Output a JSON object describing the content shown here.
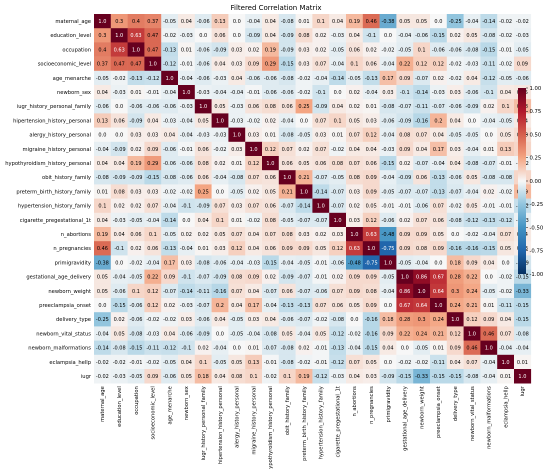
{
  "chart_data": {
    "type": "heatmap",
    "title": "Filtered Correlation Matrix",
    "xlabel": "",
    "ylabel": "",
    "labels": [
      "maternal_age",
      "education_level",
      "occupation",
      "socioeconomic_level",
      "age_menarche",
      "newborn_sex",
      "iugr_history_personal_family",
      "hipertension_history_personal",
      "alergy_history_personal",
      "migraine_history_personal",
      "hypothyroidism_history_personal",
      "obit_history_family",
      "preterm_birth_history_family",
      "hypertension_history_family",
      "cigarette_pregestational_1t",
      "n_abortions",
      "n_pregnancies",
      "primigravidity",
      "gestational_age_delivery",
      "newborn_weight",
      "preeclampsia_onset",
      "delivery_type",
      "newborn_vital_status",
      "newborn_malformations",
      "eclampsia_hellp",
      "iugr"
    ],
    "matrix": [
      [
        1.0,
        0.3,
        0.4,
        0.37,
        -0.05,
        0.04,
        -0.06,
        0.13,
        0.0,
        -0.04,
        0.04,
        -0.08,
        0.01,
        0.1,
        0.04,
        0.19,
        0.46,
        -0.38,
        0.05,
        0.05,
        0.0,
        -0.25,
        -0.04,
        -0.14,
        -0.02,
        -0.02
      ],
      [
        0.3,
        1.0,
        0.63,
        0.47,
        -0.02,
        -0.03,
        0.0,
        0.06,
        0.0,
        -0.09,
        0.04,
        -0.09,
        0.08,
        0.02,
        -0.03,
        0.04,
        -0.1,
        0.0,
        -0.04,
        -0.06,
        -0.15,
        0.02,
        0.05,
        -0.08,
        -0.02,
        -0.03
      ],
      [
        0.4,
        0.63,
        1.0,
        0.47,
        -0.13,
        0.01,
        -0.06,
        -0.09,
        0.03,
        0.02,
        0.19,
        -0.09,
        0.03,
        0.02,
        -0.05,
        0.06,
        0.02,
        -0.02,
        -0.05,
        0.1,
        -0.06,
        -0.06,
        -0.08,
        -0.15,
        -0.01,
        -0.05
      ],
      [
        0.37,
        0.47,
        0.47,
        1.0,
        -0.12,
        -0.01,
        -0.06,
        0.04,
        0.03,
        0.09,
        0.29,
        -0.15,
        0.03,
        0.07,
        -0.04,
        0.1,
        0.06,
        -0.04,
        0.22,
        0.12,
        0.12,
        -0.02,
        -0.03,
        -0.11,
        -0.02,
        0.09
      ],
      [
        -0.05,
        -0.02,
        -0.13,
        -0.12,
        1.0,
        -0.04,
        -0.06,
        -0.03,
        0.04,
        -0.06,
        -0.06,
        -0.08,
        -0.02,
        -0.04,
        -0.14,
        -0.05,
        -0.13,
        0.17,
        0.09,
        -0.07,
        0.02,
        -0.02,
        0.04,
        -0.12,
        -0.05,
        -0.06
      ],
      [
        0.04,
        -0.03,
        0.01,
        -0.01,
        -0.04,
        1.0,
        -0.03,
        -0.04,
        -0.04,
        -0.01,
        -0.06,
        -0.06,
        -0.02,
        -0.1,
        0.0,
        0.02,
        -0.04,
        0.03,
        -0.1,
        -0.14,
        -0.03,
        0.03,
        -0.06,
        -0.1,
        0.04,
        0.05
      ],
      [
        -0.06,
        0.0,
        -0.06,
        -0.06,
        -0.06,
        -0.03,
        1.0,
        0.05,
        -0.03,
        0.06,
        0.08,
        0.06,
        0.25,
        -0.09,
        0.04,
        0.02,
        0.01,
        -0.08,
        -0.07,
        -0.11,
        -0.07,
        -0.06,
        -0.09,
        0.02,
        0.1,
        0.18
      ],
      [
        0.13,
        0.06,
        -0.09,
        0.04,
        -0.03,
        -0.04,
        0.05,
        1.0,
        -0.03,
        -0.02,
        0.02,
        -0.04,
        0.0,
        0.07,
        0.1,
        0.05,
        0.03,
        -0.06,
        -0.09,
        -0.16,
        0.2,
        0.04,
        0.0,
        -0.04,
        -0.05,
        0.04
      ],
      [
        0.0,
        0.0,
        0.03,
        0.03,
        0.04,
        -0.04,
        -0.03,
        -0.03,
        1.0,
        0.03,
        0.01,
        -0.08,
        -0.05,
        0.03,
        0.01,
        0.07,
        0.12,
        -0.04,
        0.08,
        0.07,
        0.04,
        -0.05,
        -0.05,
        0.0,
        0.05,
        0.08
      ],
      [
        -0.04,
        -0.09,
        0.02,
        0.09,
        -0.06,
        -0.01,
        0.06,
        -0.02,
        0.03,
        1.0,
        0.12,
        0.07,
        0.02,
        0.07,
        -0.02,
        0.04,
        0.04,
        -0.03,
        0.09,
        0.04,
        0.17,
        0.03,
        -0.04,
        0.01,
        0.13,
        0.1
      ],
      [
        0.04,
        0.04,
        0.19,
        0.29,
        -0.06,
        -0.06,
        0.08,
        0.02,
        0.01,
        0.12,
        1.0,
        0.06,
        0.05,
        0.06,
        0.08,
        0.07,
        0.06,
        -0.15,
        0.02,
        -0.07,
        -0.04,
        0.04,
        -0.08,
        -0.07,
        -0.01,
        -0.02
      ],
      [
        -0.08,
        -0.09,
        -0.09,
        -0.15,
        -0.08,
        -0.06,
        0.06,
        -0.04,
        -0.08,
        0.07,
        0.06,
        1.0,
        0.21,
        -0.07,
        -0.05,
        0.08,
        0.09,
        -0.04,
        -0.09,
        0.06,
        -0.13,
        -0.06,
        0.05,
        -0.08,
        -0.08,
        0.1
      ],
      [
        0.01,
        0.08,
        0.03,
        0.03,
        -0.02,
        -0.02,
        0.25,
        0.0,
        -0.05,
        0.02,
        0.05,
        0.21,
        1.0,
        -0.14,
        -0.07,
        0.03,
        0.09,
        -0.05,
        -0.07,
        -0.07,
        -0.13,
        -0.07,
        -0.04,
        0.02,
        -0.02,
        0.19
      ],
      [
        0.1,
        0.02,
        0.02,
        0.07,
        -0.04,
        -0.1,
        -0.09,
        0.07,
        0.03,
        0.07,
        0.06,
        -0.07,
        -0.14,
        1.0,
        -0.07,
        0.02,
        0.05,
        -0.01,
        -0.01,
        -0.06,
        0.07,
        -0.02,
        0.05,
        -0.01,
        -0.01,
        -0.12
      ],
      [
        0.04,
        -0.03,
        -0.05,
        -0.04,
        -0.14,
        0.0,
        0.04,
        0.1,
        0.01,
        -0.02,
        0.08,
        -0.05,
        -0.07,
        -0.07,
        1.0,
        0.03,
        0.12,
        -0.06,
        0.02,
        0.07,
        0.06,
        -0.08,
        -0.12,
        -0.13,
        -0.12,
        -0.03
      ],
      [
        0.19,
        0.04,
        0.06,
        0.1,
        -0.05,
        0.02,
        0.02,
        0.05,
        0.07,
        0.04,
        0.07,
        0.08,
        0.03,
        0.02,
        0.03,
        1.0,
        0.63,
        -0.48,
        0.09,
        0.09,
        0.05,
        0.0,
        -0.02,
        -0.04,
        0.07,
        0.04
      ],
      [
        0.46,
        -0.1,
        0.02,
        0.06,
        -0.13,
        -0.04,
        0.01,
        0.03,
        0.12,
        0.04,
        0.06,
        0.09,
        0.09,
        0.05,
        0.12,
        0.63,
        1.0,
        -0.75,
        0.09,
        0.08,
        0.09,
        -0.16,
        -0.16,
        -0.15,
        0.05,
        0.03
      ],
      [
        -0.38,
        0.0,
        -0.02,
        -0.04,
        0.17,
        0.03,
        -0.08,
        -0.06,
        -0.04,
        -0.03,
        -0.15,
        -0.04,
        -0.05,
        -0.01,
        -0.06,
        -0.48,
        -0.75,
        1.0,
        -0.05,
        -0.04,
        0.0,
        0.18,
        0.09,
        0.04,
        0.0,
        -0.09
      ],
      [
        0.05,
        -0.04,
        -0.05,
        0.22,
        0.09,
        -0.1,
        -0.07,
        -0.09,
        0.08,
        0.09,
        0.02,
        -0.09,
        -0.07,
        -0.01,
        0.02,
        0.09,
        0.09,
        -0.05,
        1.0,
        0.86,
        0.67,
        0.28,
        0.22,
        0.0,
        -0.02,
        -0.15
      ],
      [
        0.05,
        -0.06,
        0.1,
        0.12,
        -0.07,
        -0.14,
        -0.11,
        -0.16,
        0.07,
        0.04,
        -0.07,
        0.06,
        -0.07,
        -0.06,
        0.07,
        0.09,
        0.08,
        -0.04,
        0.86,
        1.0,
        0.64,
        0.3,
        0.24,
        -0.05,
        -0.02,
        -0.33
      ],
      [
        0.0,
        -0.15,
        -0.06,
        0.12,
        0.02,
        -0.03,
        -0.07,
        0.2,
        0.04,
        0.17,
        -0.04,
        -0.13,
        -0.13,
        0.07,
        0.06,
        0.05,
        0.09,
        0.0,
        0.67,
        0.64,
        1.0,
        0.24,
        0.21,
        0.01,
        -0.11,
        -0.15
      ],
      [
        -0.25,
        0.02,
        -0.06,
        -0.02,
        -0.02,
        0.03,
        -0.06,
        0.04,
        -0.05,
        0.03,
        0.04,
        -0.06,
        -0.07,
        -0.02,
        -0.08,
        0.0,
        -0.16,
        0.18,
        0.28,
        0.3,
        0.24,
        1.0,
        0.12,
        0.09,
        0.04,
        -0.15
      ],
      [
        -0.04,
        0.05,
        -0.08,
        -0.03,
        0.04,
        -0.06,
        -0.09,
        0.0,
        -0.05,
        -0.04,
        -0.08,
        0.05,
        -0.04,
        0.05,
        -0.12,
        -0.02,
        -0.16,
        0.09,
        0.22,
        0.24,
        0.21,
        0.12,
        1.0,
        0.46,
        0.07,
        -0.08
      ],
      [
        -0.14,
        -0.08,
        -0.15,
        -0.11,
        -0.12,
        -0.1,
        0.02,
        -0.04,
        0.0,
        0.01,
        -0.07,
        -0.08,
        0.02,
        -0.01,
        -0.13,
        -0.04,
        -0.15,
        0.04,
        0.0,
        -0.05,
        0.01,
        0.09,
        0.46,
        1.0,
        -0.04,
        -0.04
      ],
      [
        -0.02,
        -0.02,
        -0.01,
        -0.02,
        -0.05,
        0.04,
        0.1,
        -0.05,
        0.05,
        0.13,
        -0.01,
        -0.08,
        -0.02,
        -0.01,
        -0.12,
        0.07,
        0.05,
        0.0,
        -0.02,
        -0.02,
        -0.11,
        0.04,
        0.07,
        -0.04,
        1.0,
        0.01
      ],
      [
        -0.02,
        -0.03,
        -0.05,
        0.09,
        -0.06,
        0.05,
        0.18,
        0.04,
        0.08,
        0.1,
        -0.02,
        0.1,
        0.19,
        -0.12,
        -0.03,
        0.04,
        0.03,
        -0.09,
        -0.15,
        -0.33,
        -0.15,
        -0.15,
        -0.08,
        -0.04,
        0.01,
        1.0
      ]
    ],
    "colorbar": {
      "min": -1.0,
      "max": 1.0,
      "ticks": [
        "1.00",
        "0.75",
        "0.50",
        "0.25",
        "0.00",
        "-0.25",
        "-0.50",
        "-0.75",
        "-1.00"
      ]
    },
    "colormap": {
      "negative": "#053061",
      "neutral": "#f7f7f7",
      "positive": "#67001f"
    },
    "grid": false,
    "legend": "colorbar-right"
  }
}
